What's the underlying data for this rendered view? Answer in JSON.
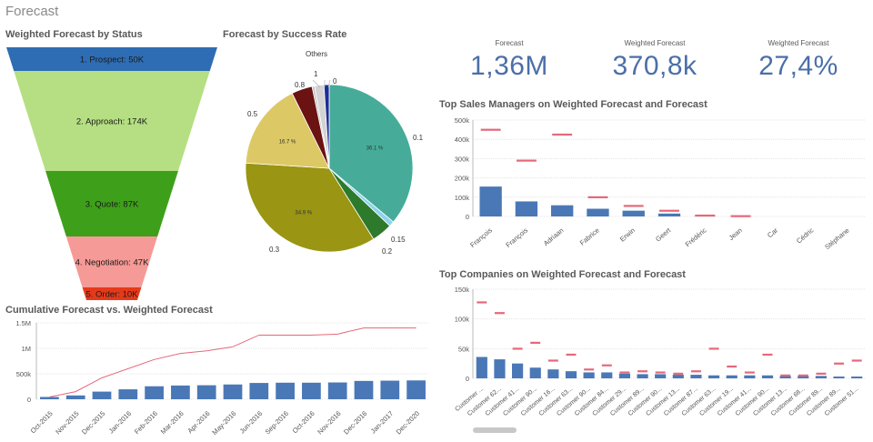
{
  "page": {
    "title": "Forecast"
  },
  "kpis": [
    {
      "label": "Forecast",
      "value": "1,36M"
    },
    {
      "label": "Weighted Forecast",
      "value": "370,8k"
    },
    {
      "label": "Weighted Forecast",
      "value": "27,4%"
    }
  ],
  "funnel": {
    "title": "Weighted Forecast by Status",
    "stages": [
      {
        "label": "1. Prospect: 50K",
        "value": 50,
        "color": "#2e6db4"
      },
      {
        "label": "2. Approach: 174K",
        "value": 174,
        "color": "#b5df82"
      },
      {
        "label": "3. Quote: 87K",
        "value": 87,
        "color": "#3ea01a"
      },
      {
        "label": "4. Negotiation: 47K",
        "value": 47,
        "color": "#f59a96"
      },
      {
        "label": "5. Order: 10K",
        "value": 10,
        "color": "#e53a1a"
      }
    ]
  },
  "chart_data": [
    {
      "id": "pie",
      "type": "pie",
      "title": "Forecast by Success Rate",
      "slices": [
        {
          "label": "0.1",
          "value": 36.1,
          "pct_label": "36.1 %",
          "color": "#46ac99"
        },
        {
          "label": "0.15",
          "value": 1.0,
          "pct_label": "",
          "color": "#8fd2ec"
        },
        {
          "label": "0.2",
          "value": 4.0,
          "pct_label": "",
          "color": "#2d7a2d"
        },
        {
          "label": "0.3",
          "value": 34.9,
          "pct_label": "34.9 %",
          "color": "#9a9512"
        },
        {
          "label": "0.5",
          "value": 16.7,
          "pct_label": "16.7 %",
          "color": "#ddc866"
        },
        {
          "label": "0.8",
          "value": 4.0,
          "pct_label": "",
          "color": "#6b1212"
        },
        {
          "label": "1",
          "value": 0.5,
          "pct_label": "",
          "color": "#c8c8c8"
        },
        {
          "label": "Others",
          "value": 1.8,
          "pct_label": "",
          "color": "#d3d3d3"
        },
        {
          "label": "0",
          "value": 1.0,
          "pct_label": "",
          "color": "#1d2e94"
        }
      ]
    },
    {
      "id": "managers",
      "type": "bar",
      "title": "Top Sales Managers on Weighted Forecast and Forecast",
      "categories": [
        "François",
        "François",
        "Adriaan",
        "Fabrice",
        "Erwin",
        "Geert",
        "Frédéric",
        "Jean",
        "Car",
        "Cédric",
        "Stéphane"
      ],
      "series": [
        {
          "name": "Weighted Forecast",
          "values": [
            155,
            78,
            58,
            40,
            30,
            15,
            1,
            0.5,
            0,
            0,
            0
          ]
        },
        {
          "name": "Forecast",
          "values": [
            450,
            290,
            425,
            100,
            55,
            30,
            5,
            2,
            0,
            0,
            0
          ]
        }
      ],
      "yticks": [
        "0",
        "100k",
        "200k",
        "300k",
        "400k",
        "500k"
      ],
      "ylim": [
        0,
        500
      ]
    },
    {
      "id": "companies",
      "type": "bar",
      "title": "Top Companies on Weighted Forecast and Forecast",
      "categories": [
        "Customer ...",
        "Customer 62...",
        "Customer 41...",
        "Customer 90...",
        "Customer 16...",
        "Customer 63...",
        "Customer 90...",
        "Customer 84...",
        "Customer 29...",
        "Customer 89...",
        "Customer 90...",
        "Customer 13...",
        "Customer 87...",
        "Customer 63...",
        "Customer 19...",
        "Customer 41...",
        "Customer 90...",
        "Customer 13...",
        "Customer 68...",
        "Customer 89...",
        "Customer 89...",
        "Customer 51..."
      ],
      "series": [
        {
          "name": "Weighted Forecast",
          "values": [
            36,
            32,
            25,
            18,
            15,
            12,
            10,
            10,
            8,
            7,
            7,
            6,
            6,
            5,
            5,
            5,
            5,
            4,
            4,
            4,
            3,
            3
          ]
        },
        {
          "name": "Forecast",
          "values": [
            128,
            110,
            50,
            60,
            30,
            40,
            15,
            22,
            10,
            12,
            10,
            8,
            12,
            50,
            20,
            10,
            40,
            5,
            5,
            8,
            25,
            30
          ]
        }
      ],
      "yticks": [
        "0",
        "50k",
        "100k",
        "150k"
      ],
      "ylim": [
        0,
        150
      ]
    },
    {
      "id": "cumulative",
      "type": "bar",
      "title": "Cumulative Forecast vs. Weighted Forecast",
      "categories": [
        "Oct-2015",
        "Nov-2015",
        "Dec-2015",
        "Jan-2016",
        "Feb-2016",
        "Mar-2016",
        "Apr-2016",
        "May-2016",
        "Jun-2016",
        "Sep-2016",
        "Oct-2016",
        "Nov-2016",
        "Dec-2016",
        "Jan-2017",
        "Dec-2020"
      ],
      "series": [
        {
          "name": "Weighted Forecast",
          "values": [
            45,
            75,
            150,
            195,
            255,
            270,
            275,
            290,
            320,
            325,
            325,
            330,
            360,
            365,
            370
          ]
        },
        {
          "name": "Forecast",
          "values": [
            45,
            150,
            420,
            600,
            780,
            900,
            950,
            1030,
            1260,
            1260,
            1260,
            1280,
            1400,
            1400,
            1400
          ]
        }
      ],
      "yticks": [
        "0",
        "500k",
        "1M",
        "1.5M"
      ],
      "ylim": [
        0,
        1500
      ]
    }
  ]
}
